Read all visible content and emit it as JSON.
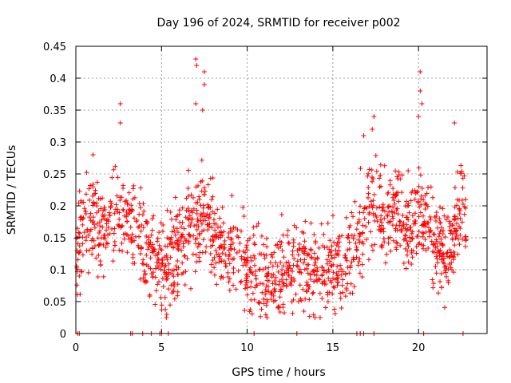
{
  "chart_data": {
    "type": "scatter",
    "title": "Day 196 of 2024, SRMTID for receiver p002",
    "xlabel": "GPS time / hours",
    "ylabel": "SRMTID / TECUs",
    "xlim": [
      0,
      24
    ],
    "ylim": [
      0,
      0.45
    ],
    "xticks": [
      0,
      5,
      10,
      15,
      20
    ],
    "xtick_labels": [
      "0",
      "5",
      "10",
      "15",
      "20"
    ],
    "yticks": [
      0,
      0.05,
      0.1,
      0.15,
      0.2,
      0.25,
      0.3,
      0.35,
      0.4,
      0.45
    ],
    "ytick_labels": [
      "0",
      "0.05",
      "0.1",
      "0.15",
      "0.2",
      "0.25",
      "0.3",
      "0.35",
      "0.4",
      "0.45"
    ],
    "grid": true,
    "marker": "plus",
    "color": "#ff0000",
    "series": [
      {
        "name": "SRMTID",
        "trend": {
          "x": [
            0,
            0.5,
            1,
            1.5,
            2,
            2.5,
            3,
            3.5,
            4,
            4.5,
            5,
            5.5,
            6,
            6.5,
            7,
            7.5,
            8,
            8.5,
            9,
            9.5,
            10,
            10.5,
            11,
            11.5,
            12,
            12.5,
            13,
            13.5,
            14,
            14.5,
            15,
            15.5,
            16,
            16.5,
            17,
            17.5,
            18,
            18.5,
            19,
            19.5,
            20,
            20.5,
            21,
            21.5,
            22,
            22.5,
            22.8
          ],
          "y": [
            0.13,
            0.16,
            0.18,
            0.16,
            0.17,
            0.2,
            0.18,
            0.15,
            0.13,
            0.11,
            0.1,
            0.11,
            0.15,
            0.15,
            0.17,
            0.2,
            0.15,
            0.14,
            0.13,
            0.12,
            0.1,
            0.09,
            0.09,
            0.08,
            0.1,
            0.1,
            0.11,
            0.1,
            0.1,
            0.1,
            0.1,
            0.1,
            0.12,
            0.15,
            0.2,
            0.22,
            0.18,
            0.19,
            0.2,
            0.16,
            0.2,
            0.18,
            0.14,
            0.13,
            0.14,
            0.2,
            0.18
          ]
        },
        "spread": 0.035,
        "n_points": 1500,
        "outliers": [
          {
            "x": 2.6,
            "y": 0.36
          },
          {
            "x": 2.6,
            "y": 0.33
          },
          {
            "x": 7.0,
            "y": 0.43
          },
          {
            "x": 7.05,
            "y": 0.42
          },
          {
            "x": 7.0,
            "y": 0.36
          },
          {
            "x": 7.5,
            "y": 0.41
          },
          {
            "x": 7.5,
            "y": 0.39
          },
          {
            "x": 7.4,
            "y": 0.35
          },
          {
            "x": 16.8,
            "y": 0.31
          },
          {
            "x": 17.4,
            "y": 0.34
          },
          {
            "x": 17.3,
            "y": 0.32
          },
          {
            "x": 20.1,
            "y": 0.41
          },
          {
            "x": 20.1,
            "y": 0.38
          },
          {
            "x": 20.2,
            "y": 0.36
          },
          {
            "x": 20.0,
            "y": 0.34
          },
          {
            "x": 22.1,
            "y": 0.33
          },
          {
            "x": 1.0,
            "y": 0.28
          },
          {
            "x": 0.2,
            "y": 0.09
          },
          {
            "x": 5.3,
            "y": 0.03
          },
          {
            "x": 11.8,
            "y": 0.04
          },
          {
            "x": 13.0,
            "y": 0.05
          },
          {
            "x": 15.5,
            "y": 0.04
          }
        ],
        "zero_points_x": [
          0.1,
          0.2,
          3.2,
          3.3,
          3.9,
          4.4,
          4.9,
          5.0,
          5.4,
          10.4,
          12.9,
          16.4,
          16.6,
          16.8,
          17.4,
          20.3,
          22.6
        ]
      }
    ]
  }
}
